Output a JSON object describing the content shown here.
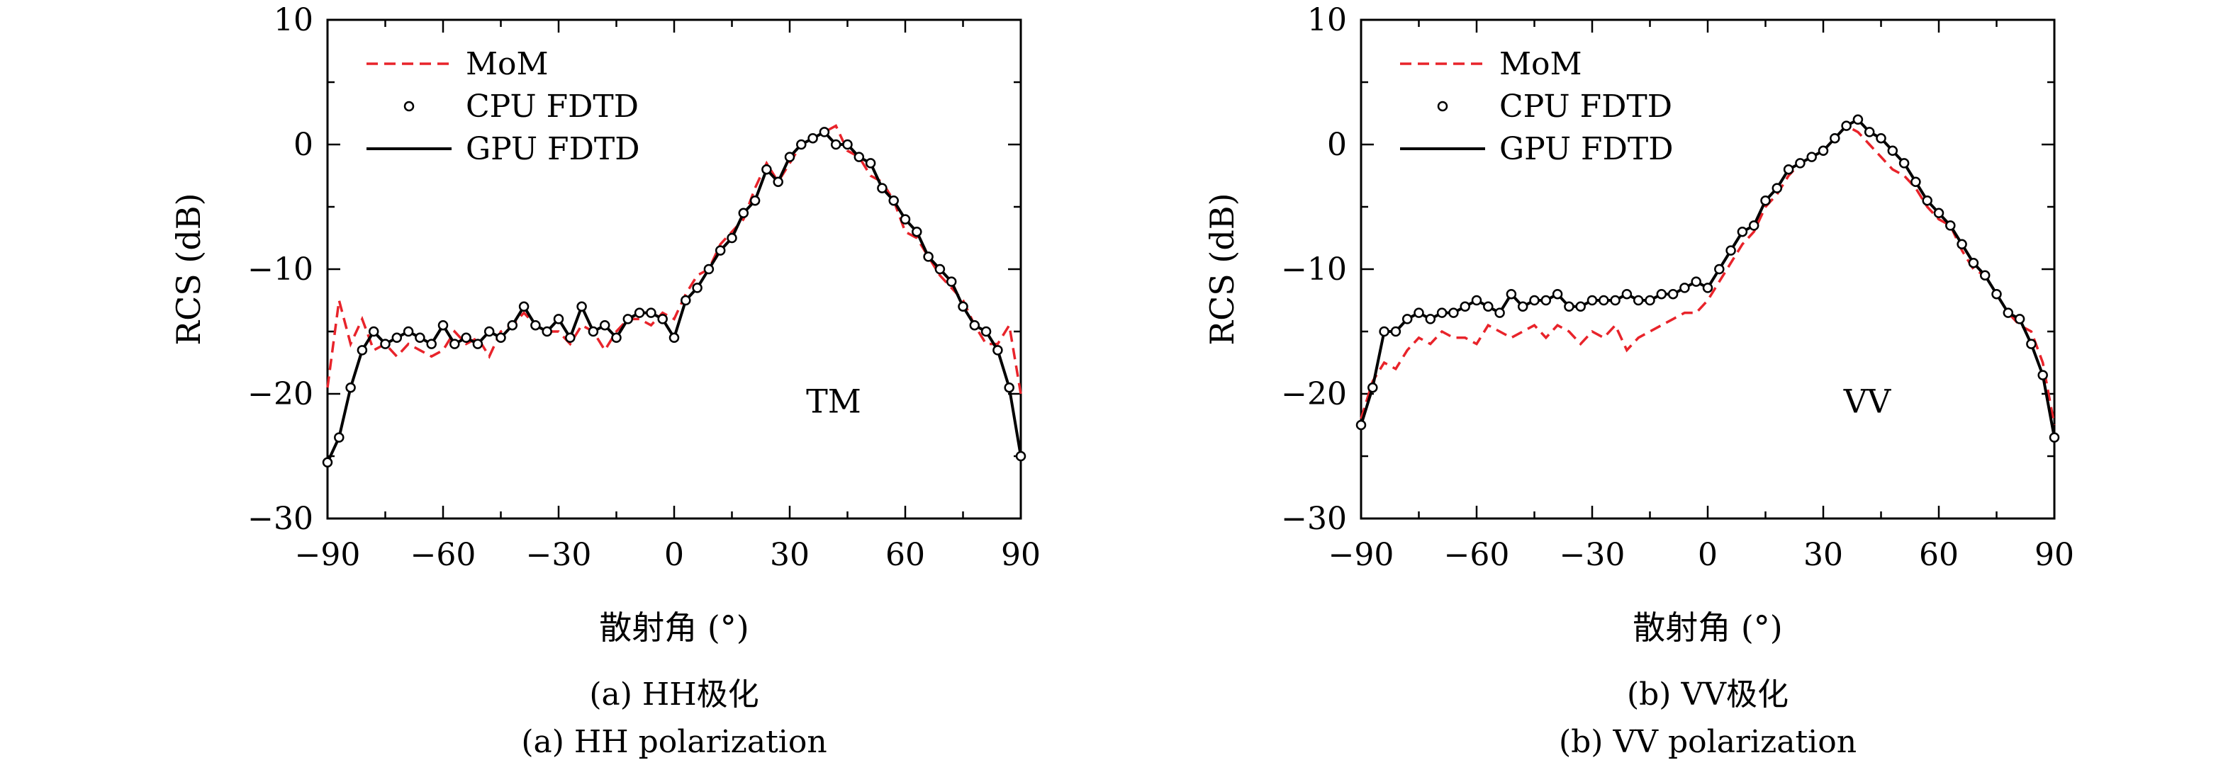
{
  "chart_data": [
    {
      "type": "line",
      "panel": "a",
      "annotation": "TM",
      "xlabel": "散射角 (°)",
      "ylabel": "RCS (dB)",
      "xlim": [
        -90,
        90
      ],
      "ylim": [
        -30,
        10
      ],
      "xticks": [
        -90,
        -60,
        -30,
        0,
        30,
        60,
        90
      ],
      "yticks": [
        -30,
        -20,
        -10,
        0,
        10
      ],
      "xtick_labels": [
        "−90",
        "−60",
        "−30",
        "0",
        "30",
        "60",
        "90"
      ],
      "ytick_labels": [
        "−30",
        "−20",
        "−10",
        "0",
        "10"
      ],
      "legend_position": "top-left",
      "caption_cn": "(a) HH极化",
      "caption_en": "(a) HH polarization",
      "x": [
        -90,
        -87,
        -84,
        -81,
        -78,
        -75,
        -72,
        -69,
        -66,
        -63,
        -60,
        -57,
        -54,
        -51,
        -48,
        -45,
        -42,
        -39,
        -36,
        -33,
        -30,
        -27,
        -24,
        -21,
        -18,
        -15,
        -12,
        -9,
        -6,
        -3,
        0,
        3,
        6,
        9,
        12,
        15,
        18,
        21,
        24,
        27,
        30,
        33,
        36,
        39,
        42,
        45,
        48,
        51,
        54,
        57,
        60,
        63,
        66,
        69,
        72,
        75,
        78,
        81,
        84,
        87,
        90
      ],
      "series": [
        {
          "name": "MoM",
          "style": "dashed",
          "color": "#e8232a",
          "values": [
            -19.5,
            -12.5,
            -16,
            -14,
            -16.5,
            -16,
            -17,
            -16,
            -16.5,
            -17,
            -16.5,
            -15,
            -16,
            -15.5,
            -17,
            -15,
            -14.5,
            -13.5,
            -14.5,
            -15,
            -15,
            -16,
            -14.5,
            -15,
            -16.5,
            -15,
            -14,
            -14,
            -14.5,
            -13.5,
            -14,
            -12,
            -10.5,
            -10,
            -8,
            -7,
            -6,
            -3.5,
            -1.5,
            -3,
            -1.5,
            0,
            0.5,
            1,
            1.5,
            -0.5,
            -1,
            -2.5,
            -3,
            -4.5,
            -7,
            -7.5,
            -9,
            -10.5,
            -11.5,
            -12.5,
            -14.5,
            -16,
            -16,
            -14.5,
            -20
          ]
        },
        {
          "name": "CPU FDTD",
          "style": "markers",
          "color": "#000000",
          "values": [
            -25.5,
            -23.5,
            -19.5,
            -16.5,
            -15,
            -16,
            -15.5,
            -15,
            -15.5,
            -16,
            -14.5,
            -16,
            -15.5,
            -16,
            -15,
            -15.5,
            -14.5,
            -13,
            -14.5,
            -15,
            -14,
            -15.5,
            -13,
            -15,
            -14.5,
            -15.5,
            -14,
            -13.5,
            -13.5,
            -14,
            -15.5,
            -12.5,
            -11.5,
            -10,
            -8.5,
            -7.5,
            -5.5,
            -4.5,
            -2,
            -3,
            -1,
            0,
            0.5,
            1,
            0,
            0,
            -1,
            -1.5,
            -3.5,
            -4.5,
            -6,
            -7,
            -9,
            -10,
            -11,
            -13,
            -14.5,
            -15,
            -16.5,
            -19.5,
            -25
          ]
        },
        {
          "name": "GPU FDTD",
          "style": "solid",
          "color": "#000000",
          "values": [
            -25.5,
            -23.5,
            -19.5,
            -16.5,
            -15,
            -16,
            -15.5,
            -15,
            -15.5,
            -16,
            -14.5,
            -16,
            -15.5,
            -16,
            -15,
            -15.5,
            -14.5,
            -13,
            -14.5,
            -15,
            -14,
            -15.5,
            -13,
            -15,
            -14.5,
            -15.5,
            -14,
            -13.5,
            -13.5,
            -14,
            -15.5,
            -12.5,
            -11.5,
            -10,
            -8.5,
            -7.5,
            -5.5,
            -4.5,
            -2,
            -3,
            -1,
            0,
            0.5,
            1,
            0,
            0,
            -1,
            -1.5,
            -3.5,
            -4.5,
            -6,
            -7,
            -9,
            -10,
            -11,
            -13,
            -14.5,
            -15,
            -16.5,
            -19.5,
            -25
          ]
        }
      ]
    },
    {
      "type": "line",
      "panel": "b",
      "annotation": "VV",
      "xlabel": "散射角 (°)",
      "ylabel": "RCS (dB)",
      "xlim": [
        -90,
        90
      ],
      "ylim": [
        -30,
        10
      ],
      "xticks": [
        -90,
        -60,
        -30,
        0,
        30,
        60,
        90
      ],
      "yticks": [
        -30,
        -20,
        -10,
        0,
        10
      ],
      "xtick_labels": [
        "−90",
        "−60",
        "−30",
        "0",
        "30",
        "60",
        "90"
      ],
      "ytick_labels": [
        "−30",
        "−20",
        "−10",
        "0",
        "10"
      ],
      "legend_position": "top-left",
      "caption_cn": "(b) VV极化",
      "caption_en": "(b) VV polarization",
      "x": [
        -90,
        -87,
        -84,
        -81,
        -78,
        -75,
        -72,
        -69,
        -66,
        -63,
        -60,
        -57,
        -54,
        -51,
        -48,
        -45,
        -42,
        -39,
        -36,
        -33,
        -30,
        -27,
        -24,
        -21,
        -18,
        -15,
        -12,
        -9,
        -6,
        -3,
        0,
        3,
        6,
        9,
        12,
        15,
        18,
        21,
        24,
        27,
        30,
        33,
        36,
        39,
        42,
        45,
        48,
        51,
        54,
        57,
        60,
        63,
        66,
        69,
        72,
        75,
        78,
        81,
        84,
        87,
        90
      ],
      "series": [
        {
          "name": "MoM",
          "style": "dashed",
          "color": "#e8232a",
          "values": [
            -22,
            -19,
            -17.5,
            -18,
            -16.5,
            -15.5,
            -16,
            -15,
            -15.5,
            -15.5,
            -16,
            -14.5,
            -15,
            -15.5,
            -15,
            -14.5,
            -15.5,
            -14.5,
            -15,
            -16,
            -15,
            -15.5,
            -14.5,
            -16.5,
            -15.5,
            -15,
            -14.5,
            -14,
            -13.5,
            -13.5,
            -12.5,
            -11,
            -9.5,
            -8,
            -7,
            -5,
            -4,
            -2.5,
            -1.5,
            -1,
            -0.5,
            0.5,
            1.5,
            1,
            0,
            -1,
            -2,
            -2.5,
            -3.5,
            -5,
            -6,
            -6.5,
            -8.5,
            -10,
            -10.5,
            -12,
            -13.5,
            -14.5,
            -15,
            -17.5,
            -22.5
          ]
        },
        {
          "name": "CPU FDTD",
          "style": "markers",
          "color": "#000000",
          "values": [
            -22.5,
            -19.5,
            -15,
            -15,
            -14,
            -13.5,
            -14,
            -13.5,
            -13.5,
            -13,
            -12.5,
            -13,
            -13.5,
            -12,
            -13,
            -12.5,
            -12.5,
            -12,
            -13,
            -13,
            -12.5,
            -12.5,
            -12.5,
            -12,
            -12.5,
            -12.5,
            -12,
            -12,
            -11.5,
            -11,
            -11.5,
            -10,
            -8.5,
            -7,
            -6.5,
            -4.5,
            -3.5,
            -2,
            -1.5,
            -1,
            -0.5,
            0.5,
            1.5,
            2,
            1,
            0.5,
            -0.5,
            -1.5,
            -3,
            -4.5,
            -5.5,
            -6.5,
            -8,
            -9.5,
            -10.5,
            -12,
            -13.5,
            -14,
            -16,
            -18.5,
            -23.5
          ]
        },
        {
          "name": "GPU FDTD",
          "style": "solid",
          "color": "#000000",
          "values": [
            -22.5,
            -19.5,
            -15,
            -15,
            -14,
            -13.5,
            -14,
            -13.5,
            -13.5,
            -13,
            -12.5,
            -13,
            -13.5,
            -12,
            -13,
            -12.5,
            -12.5,
            -12,
            -13,
            -13,
            -12.5,
            -12.5,
            -12.5,
            -12,
            -12.5,
            -12.5,
            -12,
            -12,
            -11.5,
            -11,
            -11.5,
            -10,
            -8.5,
            -7,
            -6.5,
            -4.5,
            -3.5,
            -2,
            -1.5,
            -1,
            -0.5,
            0.5,
            1.5,
            2,
            1,
            0.5,
            -0.5,
            -1.5,
            -3,
            -4.5,
            -5.5,
            -6.5,
            -8,
            -9.5,
            -10.5,
            -12,
            -13.5,
            -14,
            -16,
            -18.5,
            -23.5
          ]
        }
      ]
    }
  ]
}
